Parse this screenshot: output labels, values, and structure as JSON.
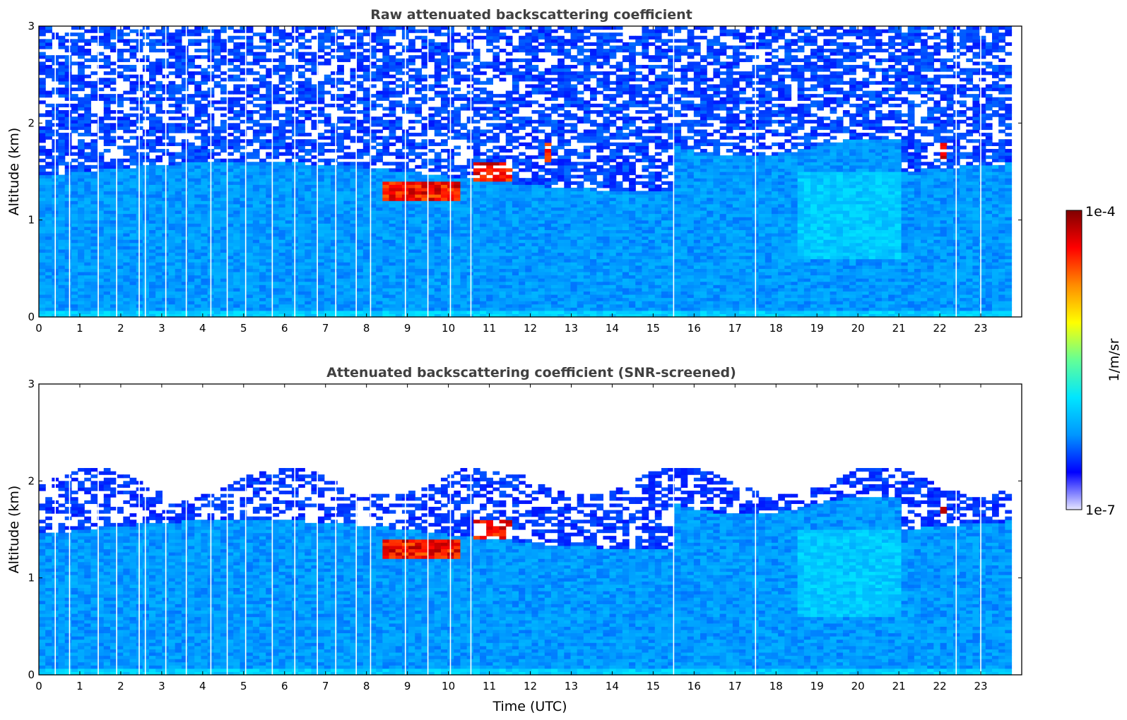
{
  "chart_data": [
    {
      "type": "heatmap",
      "title": "Raw attenuated backscattering coefficient",
      "xlabel": "",
      "ylabel": "Altitude (km)",
      "xlim": [
        0,
        24
      ],
      "ylim": [
        0,
        3
      ],
      "xticks": [
        "0",
        "1",
        "2",
        "3",
        "4",
        "5",
        "6",
        "7",
        "8",
        "9",
        "10",
        "11",
        "12",
        "13",
        "14",
        "15",
        "16",
        "17",
        "18",
        "19",
        "20",
        "21",
        "22",
        "23"
      ],
      "yticks": [
        "0",
        "1",
        "2",
        "3"
      ],
      "noise_top_km": 1.5,
      "cloud_features": [
        {
          "time_start": 8.4,
          "time_end": 10.3,
          "altitude": 1.3,
          "level": "high"
        },
        {
          "time_start": 10.6,
          "time_end": 11.5,
          "altitude": 1.5,
          "level": "high"
        },
        {
          "time_start": 12.4,
          "time_end": 12.5,
          "altitude": 1.7,
          "level": "high"
        },
        {
          "time_start": 22.0,
          "time_end": 22.1,
          "altitude": 1.7,
          "level": "high"
        }
      ],
      "data_gaps_utc": [
        0.4,
        0.75,
        1.45,
        1.9,
        2.45,
        2.6,
        3.1,
        3.6,
        4.2,
        4.6,
        5.05,
        5.7,
        6.25,
        6.8,
        7.25,
        7.75,
        8.1,
        8.95,
        9.5,
        10.05,
        10.55,
        15.5,
        17.5,
        22.4,
        23.0
      ]
    },
    {
      "type": "heatmap",
      "title": "Attenuated backscattering coefficient (SNR-screened)",
      "xlabel": "Time (UTC)",
      "ylabel": "Altitude (km)",
      "xlim": [
        0,
        24
      ],
      "ylim": [
        0,
        3
      ],
      "xticks": [
        "0",
        "1",
        "2",
        "3",
        "4",
        "5",
        "6",
        "7",
        "8",
        "9",
        "10",
        "11",
        "12",
        "13",
        "14",
        "15",
        "16",
        "17",
        "18",
        "19",
        "20",
        "21",
        "22",
        "23"
      ],
      "yticks": [
        "0",
        "1",
        "2",
        "3"
      ],
      "screen_top_km": 2.0,
      "cloud_features": [
        {
          "time_start": 8.4,
          "time_end": 10.3,
          "altitude": 1.3,
          "level": "high"
        },
        {
          "time_start": 10.6,
          "time_end": 11.5,
          "altitude": 1.5,
          "level": "high"
        },
        {
          "time_start": 22.0,
          "time_end": 22.1,
          "altitude": 1.7,
          "level": "high"
        }
      ],
      "data_gaps_utc": [
        0.4,
        0.75,
        1.45,
        1.9,
        2.45,
        2.6,
        3.1,
        3.6,
        4.2,
        4.6,
        5.05,
        5.7,
        6.25,
        6.8,
        7.25,
        7.75,
        8.1,
        8.95,
        9.5,
        10.05,
        10.55,
        15.5,
        17.5,
        22.4,
        23.0
      ]
    }
  ],
  "colorbar": {
    "label": "1/m/sr",
    "max_label": "1e-4",
    "min_label": "1e-7",
    "colors": [
      "#e6e6ff",
      "#0000ff",
      "#0096ff",
      "#00e6ff",
      "#64ff96",
      "#ffff00",
      "#ff8c00",
      "#ff0000",
      "#800000"
    ]
  }
}
